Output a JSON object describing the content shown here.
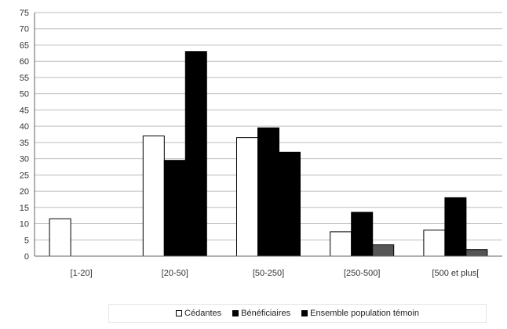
{
  "chart_data": {
    "type": "bar",
    "categories": [
      "[1-20]",
      "[20-50]",
      "[50-250]",
      "[250-500]",
      "[500 et plus["
    ],
    "series": [
      {
        "name": "Cédantes",
        "values": [
          11.5,
          37,
          36.5,
          7.5,
          8
        ],
        "color": "#ffffff"
      },
      {
        "name": "Bénéficiaires",
        "values": [
          0,
          29.5,
          39.5,
          13.5,
          18
        ],
        "color": "#000000"
      },
      {
        "name": "Ensemble population témoin",
        "values": [
          0,
          63,
          32,
          3.5,
          2
        ],
        "color": "#000000"
      }
    ],
    "yticks": [
      0,
      5,
      10,
      15,
      20,
      25,
      30,
      35,
      40,
      45,
      50,
      55,
      60,
      65,
      70,
      75
    ],
    "ylim": [
      0,
      75
    ],
    "grid": true,
    "legend_position": "bottom",
    "title": "",
    "xlabel": "",
    "ylabel": ""
  }
}
